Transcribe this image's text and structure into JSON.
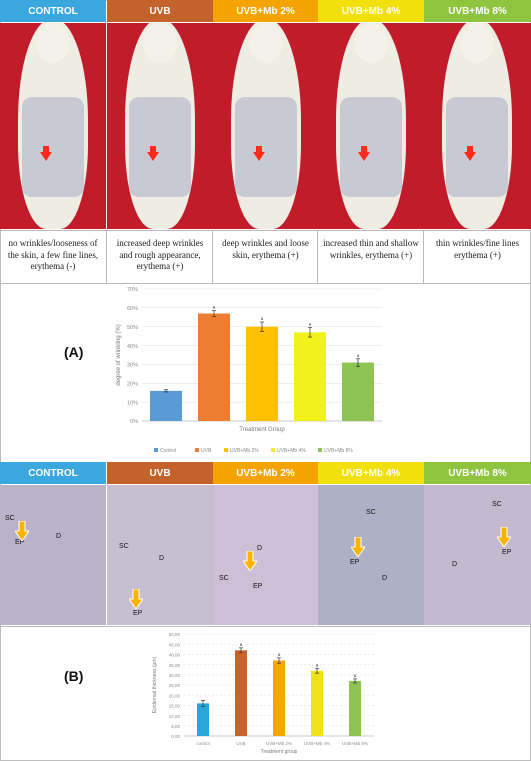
{
  "groups": [
    {
      "label": "CONTROL",
      "color": "#3aa7df"
    },
    {
      "label": "UVB",
      "color": "#c4622b"
    },
    {
      "label": "UVB+Mb 2%",
      "color": "#f5a300"
    },
    {
      "label": "UVB+Mb 4%",
      "color": "#f2e00c"
    },
    {
      "label": "UVB+Mb 8%",
      "color": "#8ec43e"
    }
  ],
  "captions": [
    "no wrinkles/looseness of the skin, a few fine lines, erythema (-)",
    "increased deep wrinkles and rough appearance, erythema (+)",
    "deep wrinkles and loose skin, erythema (+)",
    "increased thin and shallow wrinkles, erythema (+)",
    "thin wrinkles/fine lines erythema (+)"
  ],
  "panel_labels": {
    "a": "(A)",
    "b": "(B)"
  },
  "histology_tags": {
    "sc": "SC",
    "ep": "EP",
    "d": "D"
  },
  "chart_data": [
    {
      "type": "bar",
      "categories": [
        "Control",
        "UVB",
        "UVB+Mb 2%",
        "UVB+Mb 4%",
        "UVB+Mb 8%"
      ],
      "values": [
        16,
        57,
        50,
        47,
        31
      ],
      "errors": [
        0.6,
        1.5,
        2.5,
        2.5,
        2.0
      ],
      "significance": [
        "",
        "a",
        "a",
        "a",
        "a"
      ],
      "colors": [
        "#5b9bd5",
        "#ed7d31",
        "#ffc000",
        "#f2f21a",
        "#8dc453"
      ],
      "xlabel": "Treatment Group",
      "ylabel": "degree of wrinkling (%)",
      "yticks": [
        "0%",
        "10%",
        "20%",
        "30%",
        "40%",
        "50%",
        "60%",
        "70%"
      ],
      "ylim": [
        0,
        70
      ],
      "legend": [
        "Control",
        "UVB",
        "UVB+Mb 2%",
        "UVB+Mb 4%",
        "UVB+Mb 8%"
      ],
      "legend_position": "bottom"
    },
    {
      "type": "bar",
      "categories": [
        "control",
        "UVB",
        "UVB+Mb 2%",
        "UVB+Mb 4%",
        "UVB+Mb 8%"
      ],
      "values": [
        16,
        42,
        37,
        32,
        27
      ],
      "errors": [
        1.5,
        1.2,
        1.3,
        1.2,
        1.0
      ],
      "significance": [
        "",
        "a",
        "a",
        "a",
        "a"
      ],
      "colors": [
        "#2aa6d8",
        "#c9632b",
        "#f7a800",
        "#f0e21a",
        "#8dc453"
      ],
      "xlabel": "Treatment group",
      "ylabel": "Epidermal thickness (µm)",
      "yticks": [
        "0,00",
        "5,00",
        "10,00",
        "15,00",
        "20,00",
        "25,00",
        "30,00",
        "35,00",
        "40,00",
        "45,00",
        "50,00"
      ],
      "ylim": [
        0,
        50
      ]
    }
  ]
}
